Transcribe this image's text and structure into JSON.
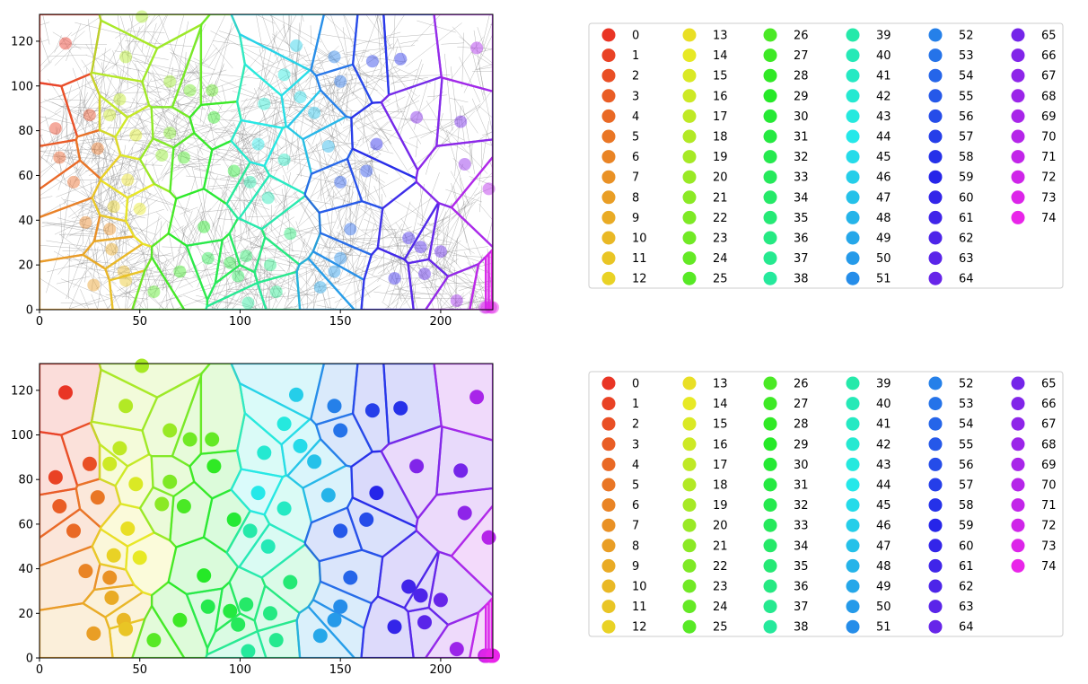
{
  "chart_data": [
    {
      "type": "voronoi",
      "panel": "top",
      "title": "",
      "xlabel": "",
      "ylabel": "",
      "xlim": [
        0,
        226
      ],
      "ylim": [
        0,
        132
      ],
      "x_ticks": [
        0,
        50,
        100,
        150,
        200
      ],
      "y_ticks": [
        0,
        20,
        40,
        60,
        80,
        100,
        120
      ],
      "grid": false,
      "background_overlay": "dense gray edge network",
      "legend": {
        "placement": "right",
        "columns": 6,
        "labels": [
          "0",
          "1",
          "2",
          "3",
          "4",
          "5",
          "6",
          "7",
          "8",
          "9",
          "10",
          "11",
          "12",
          "13",
          "14",
          "15",
          "16",
          "17",
          "18",
          "19",
          "20",
          "21",
          "22",
          "23",
          "24",
          "25",
          "26",
          "27",
          "28",
          "29",
          "30",
          "31",
          "32",
          "33",
          "34",
          "35",
          "36",
          "37",
          "38",
          "39",
          "40",
          "41",
          "42",
          "43",
          "44",
          "45",
          "46",
          "47",
          "48",
          "49",
          "50",
          "51",
          "52",
          "53",
          "54",
          "55",
          "56",
          "57",
          "58",
          "59",
          "60",
          "61",
          "62",
          "63",
          "64",
          "65",
          "66",
          "67",
          "68",
          "69",
          "70",
          "71",
          "72",
          "73",
          "74"
        ]
      }
    },
    {
      "type": "voronoi",
      "panel": "bottom",
      "title": "",
      "xlabel": "",
      "ylabel": "",
      "xlim": [
        0,
        226
      ],
      "ylim": [
        0,
        132
      ],
      "x_ticks": [
        0,
        50,
        100,
        150,
        200
      ],
      "y_ticks": [
        0,
        20,
        40,
        60,
        80,
        100,
        120
      ],
      "grid": false,
      "filled_regions": true,
      "legend": {
        "placement": "right",
        "columns": 6,
        "labels": [
          "0",
          "1",
          "2",
          "3",
          "4",
          "5",
          "6",
          "7",
          "8",
          "9",
          "10",
          "11",
          "12",
          "13",
          "14",
          "15",
          "16",
          "17",
          "18",
          "19",
          "20",
          "21",
          "22",
          "23",
          "24",
          "25",
          "26",
          "27",
          "28",
          "29",
          "30",
          "31",
          "32",
          "33",
          "34",
          "35",
          "36",
          "37",
          "38",
          "39",
          "40",
          "41",
          "42",
          "43",
          "44",
          "45",
          "46",
          "47",
          "48",
          "49",
          "50",
          "51",
          "52",
          "53",
          "54",
          "55",
          "56",
          "57",
          "58",
          "59",
          "60",
          "61",
          "62",
          "63",
          "64",
          "65",
          "66",
          "67",
          "68",
          "69",
          "70",
          "71",
          "72",
          "73",
          "74"
        ]
      }
    }
  ],
  "cells": [
    {
      "id": "0",
      "x": 13,
      "y": 119
    },
    {
      "id": "1",
      "x": 8,
      "y": 81
    },
    {
      "id": "2",
      "x": 25,
      "y": 87
    },
    {
      "id": "3",
      "x": 10,
      "y": 68
    },
    {
      "id": "4",
      "x": 17,
      "y": 57
    },
    {
      "id": "5",
      "x": 29,
      "y": 72
    },
    {
      "id": "6",
      "x": 23,
      "y": 39
    },
    {
      "id": "7",
      "x": 35,
      "y": 36
    },
    {
      "id": "8",
      "x": 27,
      "y": 11
    },
    {
      "id": "9",
      "x": 36,
      "y": 27
    },
    {
      "id": "10",
      "x": 42,
      "y": 17
    },
    {
      "id": "11",
      "x": 43,
      "y": 13
    },
    {
      "id": "12",
      "x": 37,
      "y": 46
    },
    {
      "id": "13",
      "x": 44,
      "y": 58
    },
    {
      "id": "14",
      "x": 50,
      "y": 45
    },
    {
      "id": "15",
      "x": 48,
      "y": 78
    },
    {
      "id": "16",
      "x": 35,
      "y": 87
    },
    {
      "id": "17",
      "x": 40,
      "y": 94
    },
    {
      "id": "18",
      "x": 43,
      "y": 113
    },
    {
      "id": "19",
      "x": 51,
      "y": 131
    },
    {
      "id": "20",
      "x": 65,
      "y": 102
    },
    {
      "id": "21",
      "x": 61,
      "y": 69
    },
    {
      "id": "22",
      "x": 65,
      "y": 79
    },
    {
      "id": "23",
      "x": 75,
      "y": 98
    },
    {
      "id": "24",
      "x": 86,
      "y": 98
    },
    {
      "id": "25",
      "x": 57,
      "y": 8
    },
    {
      "id": "26",
      "x": 72,
      "y": 68
    },
    {
      "id": "27",
      "x": 70,
      "y": 17
    },
    {
      "id": "28",
      "x": 87,
      "y": 86
    },
    {
      "id": "29",
      "x": 82,
      "y": 37
    },
    {
      "id": "30",
      "x": 97,
      "y": 62
    },
    {
      "id": "31",
      "x": 95,
      "y": 21
    },
    {
      "id": "32",
      "x": 84,
      "y": 23
    },
    {
      "id": "33",
      "x": 99,
      "y": 15
    },
    {
      "id": "34",
      "x": 103,
      "y": 24
    },
    {
      "id": "35",
      "x": 125,
      "y": 34
    },
    {
      "id": "36",
      "x": 115,
      "y": 20
    },
    {
      "id": "37",
      "x": 118,
      "y": 8
    },
    {
      "id": "38",
      "x": 104,
      "y": 3
    },
    {
      "id": "39",
      "x": 105,
      "y": 57
    },
    {
      "id": "40",
      "x": 114,
      "y": 50
    },
    {
      "id": "41",
      "x": 122,
      "y": 67
    },
    {
      "id": "42",
      "x": 112,
      "y": 92
    },
    {
      "id": "43",
      "x": 122,
      "y": 105
    },
    {
      "id": "44",
      "x": 109,
      "y": 74
    },
    {
      "id": "45",
      "x": 130,
      "y": 95
    },
    {
      "id": "46",
      "x": 128,
      "y": 118
    },
    {
      "id": "47",
      "x": 137,
      "y": 88
    },
    {
      "id": "48",
      "x": 144,
      "y": 73
    },
    {
      "id": "49",
      "x": 140,
      "y": 10
    },
    {
      "id": "50",
      "x": 147,
      "y": 17
    },
    {
      "id": "51",
      "x": 150,
      "y": 23
    },
    {
      "id": "52",
      "x": 147,
      "y": 113
    },
    {
      "id": "53",
      "x": 150,
      "y": 102
    },
    {
      "id": "54",
      "x": 155,
      "y": 36
    },
    {
      "id": "55",
      "x": 150,
      "y": 57
    },
    {
      "id": "56",
      "x": 163,
      "y": 62
    },
    {
      "id": "57",
      "x": 166,
      "y": 111
    },
    {
      "id": "58",
      "x": 180,
      "y": 112
    },
    {
      "id": "59",
      "x": 168,
      "y": 74
    },
    {
      "id": "60",
      "x": 177,
      "y": 14
    },
    {
      "id": "61",
      "x": 184,
      "y": 32
    },
    {
      "id": "62",
      "x": 190,
      "y": 28
    },
    {
      "id": "63",
      "x": 192,
      "y": 16
    },
    {
      "id": "64",
      "x": 200,
      "y": 26
    },
    {
      "id": "65",
      "x": 210,
      "y": 84
    },
    {
      "id": "66",
      "x": 188,
      "y": 86
    },
    {
      "id": "67",
      "x": 212,
      "y": 65
    },
    {
      "id": "68",
      "x": 208,
      "y": 4
    },
    {
      "id": "69",
      "x": 218,
      "y": 117
    },
    {
      "id": "70",
      "x": 224,
      "y": 54
    },
    {
      "id": "71",
      "x": 222,
      "y": 1
    },
    {
      "id": "72",
      "x": 225,
      "y": 1
    },
    {
      "id": "73",
      "x": 223,
      "y": 1
    },
    {
      "id": "74",
      "x": 226,
      "y": 1
    }
  ]
}
